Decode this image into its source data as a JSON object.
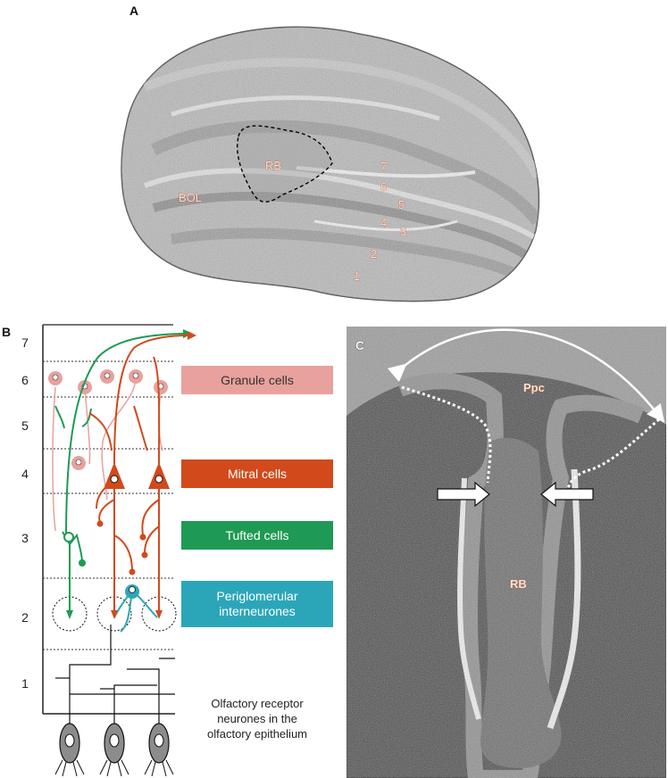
{
  "panel_a": {
    "letter": "A",
    "labels": {
      "rb": "RB",
      "bol": "BOL",
      "layers": [
        "7",
        "6",
        "5",
        "4",
        "3",
        "2",
        "1"
      ]
    }
  },
  "panel_b": {
    "letter": "B",
    "layer_numbers": [
      "7",
      "6",
      "5",
      "4",
      "3",
      "2",
      "1"
    ],
    "legend": [
      {
        "text": "Granule cells",
        "color": "#e8a19d",
        "text_color": "#333333"
      },
      {
        "text": "Mitral cells",
        "color": "#d24a1c",
        "text_color": "#ffffff"
      },
      {
        "text": "Tufted cells",
        "color": "#1e9a55",
        "text_color": "#ffffff"
      },
      {
        "line1": "Periglomerular",
        "line2": "interneurones",
        "color": "#2ba6b9",
        "text_color": "#ffffff"
      }
    ],
    "receptor_caption": {
      "line1": "Olfactory receptor",
      "line2": "neurones in the",
      "line3": "olfactory epithelium"
    }
  },
  "panel_c": {
    "letter": "C",
    "labels": {
      "ppc": "Ppc",
      "rb": "RB"
    }
  },
  "colors": {
    "mitral": "#d24a1c",
    "tufted": "#1e9a55",
    "granule": "#e8a19d",
    "periglomerular": "#2ba6b9",
    "tissue_light": "#c9c9c9",
    "tissue_dark": "#3e3e3e"
  }
}
